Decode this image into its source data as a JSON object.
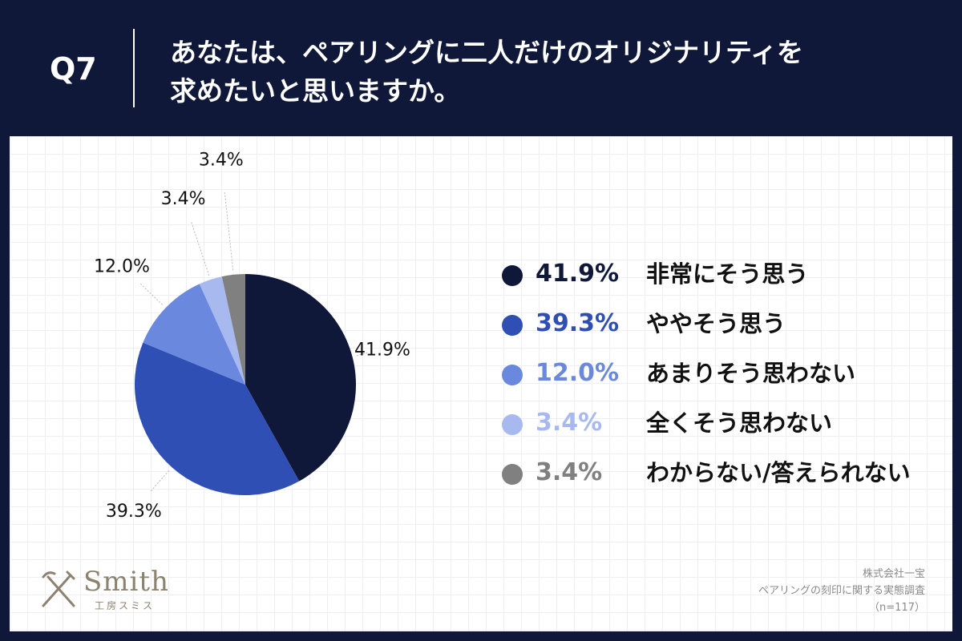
{
  "header": {
    "q_label": "Q7",
    "question_line1": "あなたは、ペアリングに二人だけのオリジナリティを",
    "question_line2": "求めたいと思いますか。"
  },
  "chart_data": {
    "type": "pie",
    "title": "あなたは、ペアリングに二人だけのオリジナリティを求めたいと思いますか。",
    "categories": [
      "非常にそう思う",
      "ややそう思う",
      "あまりそう思わない",
      "全くそう思わない",
      "わからない/答えられない"
    ],
    "values": [
      41.9,
      39.3,
      12.0,
      3.4,
      3.4
    ],
    "labels": [
      "41.9%",
      "39.3%",
      "12.0%",
      "3.4%",
      "3.4%"
    ],
    "colors": [
      "#0f1838",
      "#2f4fb5",
      "#6a88de",
      "#a7b9ee",
      "#808080"
    ],
    "start": "12 o'clock",
    "direction": "clockwise"
  },
  "legend": {
    "items": [
      {
        "pct": "41.9%",
        "label": "非常にそう思う",
        "color": "#0f1838"
      },
      {
        "pct": "39.3%",
        "label": "ややそう思う",
        "color": "#2f4fb5"
      },
      {
        "pct": "12.0%",
        "label": "あまりそう思わない",
        "color": "#6a88de"
      },
      {
        "pct": "3.4%",
        "label": "全くそう思わない",
        "color": "#a7b9ee"
      },
      {
        "pct": "3.4%",
        "label": "わからない/答えられない",
        "color": "#808080"
      }
    ]
  },
  "logo": {
    "name": "Smith",
    "sub": "工房スミス"
  },
  "source": {
    "company": "株式会社一宝",
    "survey": "ペアリングの刻印に関する実態調査",
    "n": "（n=117）"
  }
}
